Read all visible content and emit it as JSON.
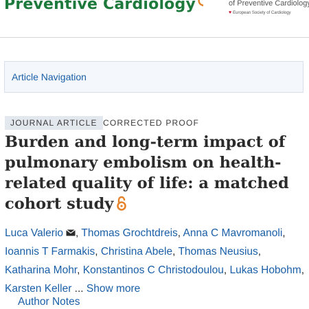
{
  "header": {
    "journal_name": "Preventive Cardiology",
    "logo_text": "of Preventive Cardiology",
    "society_text": "European Society of Cardiology",
    "brand_color": "#1e7a3c",
    "logo_colors": [
      "#e6832a",
      "#e94e77"
    ]
  },
  "navigation": {
    "label": "Article Navigation"
  },
  "article": {
    "type": "JOURNAL ARTICLE",
    "status": "CORRECTED PROOF",
    "title": "Burden and long-term impact of pulmonary embolism on health-related quality of life: a matched cohort study",
    "open_access_icon": "open-access-lock-icon",
    "link_color": "#1a5fa8"
  },
  "authors": {
    "list": [
      "Luca Valerio",
      "Thomas Grochtdreis",
      "Anna C Mavromanoli",
      "Ioannis T Farmakis",
      "Christina Abele",
      "Thomas Neusius",
      "Katharina Mohr",
      "Konstantinos C Christodoulou",
      "Lukas Hobohm",
      "Karsten Keller"
    ],
    "separator": ",",
    "ellipsis": "...",
    "show_more": "Show more",
    "author_notes": "Author Notes",
    "corresponding_icon": "envelope-icon"
  }
}
